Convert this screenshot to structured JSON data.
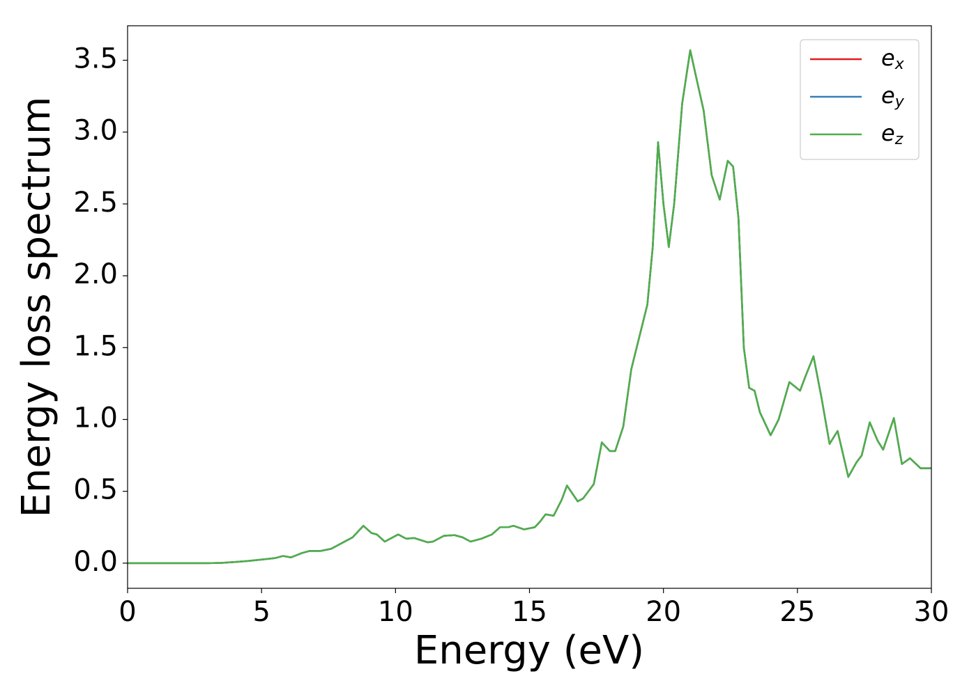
{
  "chart_data": {
    "type": "line",
    "xlabel": "Energy (eV)",
    "ylabel": "Energy loss spectrum",
    "x": [
      0,
      1,
      2,
      3,
      3.5,
      4,
      4.5,
      5,
      5.5,
      5.8,
      6.1,
      6.5,
      6.8,
      7.2,
      7.6,
      8,
      8.4,
      8.8,
      9.1,
      9.3,
      9.6,
      10.1,
      10.4,
      10.7,
      11.2,
      11.4,
      11.8,
      12.2,
      12.5,
      12.8,
      13.2,
      13.6,
      13.9,
      14.2,
      14.4,
      14.8,
      15.2,
      15.4,
      15.6,
      15.9,
      16.2,
      16.4,
      16.8,
      17,
      17.2,
      17.4,
      17.7,
      18,
      18.2,
      18.5,
      18.8,
      19,
      19.4,
      19.6,
      19.8,
      20,
      20.2,
      20.4,
      20.7,
      21,
      21.2,
      21.5,
      21.8,
      22.1,
      22.4,
      22.6,
      22.8,
      23,
      23.2,
      23.4,
      23.6,
      24,
      24.3,
      24.7,
      24.9,
      25.1,
      25.3,
      25.6,
      25.9,
      26.2,
      26.5,
      26.9,
      27.2,
      27.4,
      27.7,
      28,
      28.2,
      28.6,
      28.9,
      29.2,
      29.6,
      30
    ],
    "series": [
      {
        "name": "e_x",
        "color": "#e41a1c",
        "values": [
          0,
          0,
          0,
          0,
          0.002,
          0.008,
          0.015,
          0.025,
          0.035,
          0.05,
          0.04,
          0.07,
          0.085,
          0.085,
          0.1,
          0.14,
          0.18,
          0.26,
          0.21,
          0.2,
          0.15,
          0.2,
          0.17,
          0.175,
          0.145,
          0.15,
          0.19,
          0.195,
          0.18,
          0.15,
          0.17,
          0.2,
          0.25,
          0.25,
          0.26,
          0.235,
          0.25,
          0.29,
          0.34,
          0.33,
          0.44,
          0.54,
          0.43,
          0.45,
          0.5,
          0.55,
          0.84,
          0.78,
          0.78,
          0.95,
          1.35,
          1.5,
          1.8,
          2.2,
          2.93,
          2.5,
          2.2,
          2.5,
          3.2,
          3.57,
          3.4,
          3.15,
          2.7,
          2.53,
          2.8,
          2.76,
          2.4,
          1.5,
          1.22,
          1.2,
          1.05,
          0.89,
          1.0,
          1.26,
          1.23,
          1.2,
          1.3,
          1.44,
          1.15,
          0.83,
          0.92,
          0.6,
          0.7,
          0.75,
          0.98,
          0.85,
          0.79,
          1.01,
          0.69,
          0.73,
          0.66,
          0.66
        ]
      },
      {
        "name": "e_y",
        "color": "#377eb8",
        "values": [
          0,
          0,
          0,
          0,
          0.002,
          0.008,
          0.015,
          0.025,
          0.035,
          0.05,
          0.04,
          0.07,
          0.085,
          0.085,
          0.1,
          0.14,
          0.18,
          0.26,
          0.21,
          0.2,
          0.15,
          0.2,
          0.17,
          0.175,
          0.145,
          0.15,
          0.19,
          0.195,
          0.18,
          0.15,
          0.17,
          0.2,
          0.25,
          0.25,
          0.26,
          0.235,
          0.25,
          0.29,
          0.34,
          0.33,
          0.44,
          0.54,
          0.43,
          0.45,
          0.5,
          0.55,
          0.84,
          0.78,
          0.78,
          0.95,
          1.35,
          1.5,
          1.8,
          2.2,
          2.93,
          2.5,
          2.2,
          2.5,
          3.2,
          3.57,
          3.4,
          3.15,
          2.7,
          2.53,
          2.8,
          2.76,
          2.4,
          1.5,
          1.22,
          1.2,
          1.05,
          0.89,
          1.0,
          1.26,
          1.23,
          1.2,
          1.3,
          1.44,
          1.15,
          0.83,
          0.92,
          0.6,
          0.7,
          0.75,
          0.98,
          0.85,
          0.79,
          1.01,
          0.69,
          0.73,
          0.66,
          0.66
        ]
      },
      {
        "name": "e_z",
        "color": "#4daf4a",
        "values": [
          0,
          0,
          0,
          0,
          0.002,
          0.008,
          0.015,
          0.025,
          0.035,
          0.05,
          0.04,
          0.07,
          0.085,
          0.085,
          0.1,
          0.14,
          0.18,
          0.26,
          0.21,
          0.2,
          0.15,
          0.2,
          0.17,
          0.175,
          0.145,
          0.15,
          0.19,
          0.195,
          0.18,
          0.15,
          0.17,
          0.2,
          0.25,
          0.25,
          0.26,
          0.235,
          0.25,
          0.29,
          0.34,
          0.33,
          0.44,
          0.54,
          0.43,
          0.45,
          0.5,
          0.55,
          0.84,
          0.78,
          0.78,
          0.95,
          1.35,
          1.5,
          1.8,
          2.2,
          2.93,
          2.5,
          2.2,
          2.5,
          3.2,
          3.57,
          3.4,
          3.15,
          2.7,
          2.53,
          2.8,
          2.76,
          2.4,
          1.5,
          1.22,
          1.2,
          1.05,
          0.89,
          1.0,
          1.26,
          1.23,
          1.2,
          1.3,
          1.44,
          1.15,
          0.83,
          0.92,
          0.6,
          0.7,
          0.75,
          0.98,
          0.85,
          0.79,
          1.01,
          0.69,
          0.73,
          0.66,
          0.66
        ]
      }
    ],
    "xlim": [
      0,
      30
    ],
    "xticks": [
      0,
      5,
      10,
      15,
      20,
      25,
      30
    ],
    "ylim": [
      -0.175,
      3.74
    ],
    "yticks": [
      {
        "value": 0,
        "label": "0.0"
      },
      0.5,
      {
        "value": 1,
        "label": "1.0"
      },
      1.5,
      {
        "value": 2,
        "label": "2.0"
      },
      2.5,
      {
        "value": 3,
        "label": "3.0"
      },
      3.5
    ],
    "legend": "upper right",
    "grid": false
  }
}
